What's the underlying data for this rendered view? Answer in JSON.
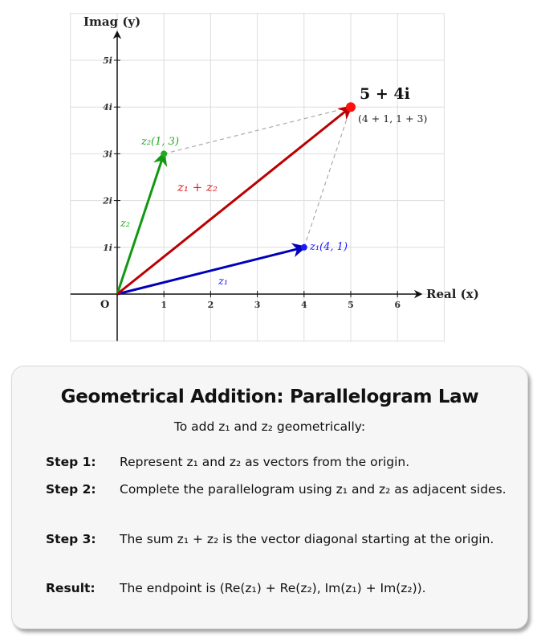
{
  "diagram": {
    "y_axis_label": "Imag (y)",
    "x_axis_label": "Real (x)",
    "origin_label": "O",
    "x_ticks": [
      "1",
      "2",
      "3",
      "4",
      "5",
      "6"
    ],
    "y_ticks": [
      "1i",
      "2i",
      "3i",
      "4i",
      "5i"
    ],
    "x_range": [
      -1,
      7
    ],
    "y_range": [
      -1,
      6
    ],
    "vectors": [
      {
        "name": "z1",
        "to": [
          4,
          1
        ],
        "color": "#0000bb",
        "label": "z₁",
        "point_label": "z₁(4, 1)",
        "point_color": "#1a1aff"
      },
      {
        "name": "z2",
        "to": [
          1,
          3
        ],
        "color": "#119911",
        "label": "z₂",
        "point_label": "z₂(1, 3)",
        "point_color": "#22aa22"
      },
      {
        "name": "sum",
        "to": [
          5,
          4
        ],
        "color": "#bb0000",
        "label": "z₁ + z₂",
        "label_color": "#dd2222"
      }
    ],
    "result_point": {
      "at": [
        5,
        4
      ],
      "color": "#ff1111",
      "label": "5 + 4i",
      "sublabel": "(4 + 1, 1 + 3)"
    },
    "dashed_color": "#aaaaaa",
    "grid_color": "#dddddd"
  },
  "card": {
    "title": "Geometrical Addition: Parallelogram Law",
    "subtitle": "To add z₁ and z₂ geometrically:",
    "steps": [
      {
        "label": "Step 1:",
        "text": "Represent z₁ and z₂ as vectors from the origin."
      },
      {
        "label": "Step 2:",
        "text": "Complete the parallelogram using z₁ and z₂ as adjacent sides."
      },
      {
        "label": "Step 3:",
        "text": "The sum z₁ + z₂ is the vector diagonal starting at the origin."
      },
      {
        "label": "Result:",
        "text": "The endpoint is (Re(z₁) + Re(z₂), Im(z₁) + Im(z₂))."
      }
    ]
  }
}
